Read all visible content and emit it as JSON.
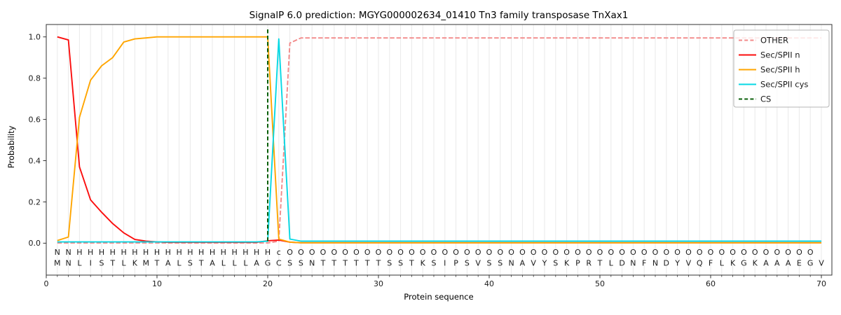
{
  "title": "SignalP 6.0 prediction: MGYG000002634_01410 Tn3 family transposase TnXax1",
  "chart_data": {
    "type": "line",
    "title": "SignalP 6.0 prediction: MGYG000002634_01410 Tn3 family transposase TnXax1",
    "xlabel": "Protein sequence",
    "ylabel": "Probability",
    "x_ticks": [
      0,
      10,
      20,
      30,
      40,
      50,
      60,
      70
    ],
    "y_ticks": [
      "0.0",
      "0.2",
      "0.4",
      "0.6",
      "0.8",
      "1.0"
    ],
    "ylim": [
      0.0,
      1.0
    ],
    "xlim": [
      0,
      71
    ],
    "grid": "vertical-per-residue",
    "legend_position": "upper right",
    "x": [
      1,
      2,
      3,
      4,
      5,
      6,
      7,
      8,
      9,
      10,
      11,
      12,
      13,
      14,
      15,
      16,
      17,
      18,
      19,
      20,
      21,
      22,
      23,
      24,
      25,
      26,
      27,
      28,
      29,
      30,
      31,
      32,
      33,
      34,
      35,
      36,
      37,
      38,
      39,
      40,
      41,
      42,
      43,
      44,
      45,
      46,
      47,
      48,
      49,
      50,
      51,
      52,
      53,
      54,
      55,
      56,
      57,
      58,
      59,
      60,
      61,
      62,
      63,
      64,
      65,
      66,
      67,
      68,
      69,
      70
    ],
    "series": [
      {
        "name": "OTHER",
        "color": "#f28a8a",
        "style": "dashed",
        "values": [
          0.001,
          0.001,
          0.001,
          0.001,
          0.001,
          0.001,
          0.001,
          0.001,
          0.001,
          0.001,
          0.001,
          0.001,
          0.001,
          0.001,
          0.001,
          0.001,
          0.001,
          0.001,
          0.001,
          0.001,
          0.01,
          0.97,
          0.995,
          0.995,
          0.995,
          0.995,
          0.995,
          0.995,
          0.995,
          0.995,
          0.995,
          0.995,
          0.995,
          0.995,
          0.995,
          0.995,
          0.995,
          0.995,
          0.995,
          0.995,
          0.995,
          0.995,
          0.995,
          0.995,
          0.995,
          0.995,
          0.995,
          0.995,
          0.995,
          0.995,
          0.995,
          0.995,
          0.995,
          0.995,
          0.995,
          0.995,
          0.995,
          0.995,
          0.995,
          0.995,
          0.995,
          0.995,
          0.995,
          0.995,
          0.995,
          0.995,
          0.995,
          0.995,
          0.995,
          0.995
        ]
      },
      {
        "name": "Sec/SPII n",
        "color": "#fb0e0e",
        "style": "solid",
        "values": [
          1.0,
          0.985,
          0.37,
          0.21,
          0.15,
          0.095,
          0.05,
          0.018,
          0.01,
          0.006,
          0.004,
          0.004,
          0.004,
          0.004,
          0.004,
          0.004,
          0.004,
          0.004,
          0.004,
          0.012,
          0.015,
          0.005,
          0.002,
          0.002,
          0.002,
          0.002,
          0.002,
          0.002,
          0.002,
          0.002,
          0.002,
          0.002,
          0.002,
          0.002,
          0.002,
          0.002,
          0.002,
          0.002,
          0.002,
          0.002,
          0.002,
          0.002,
          0.002,
          0.002,
          0.002,
          0.002,
          0.002,
          0.002,
          0.002,
          0.002,
          0.002,
          0.002,
          0.002,
          0.002,
          0.002,
          0.002,
          0.002,
          0.002,
          0.002,
          0.002,
          0.002,
          0.002,
          0.002,
          0.002,
          0.002,
          0.002,
          0.002,
          0.002,
          0.002,
          0.002
        ]
      },
      {
        "name": "Sec/SPII h",
        "color": "#ffa500",
        "style": "solid",
        "values": [
          0.013,
          0.03,
          0.61,
          0.79,
          0.86,
          0.9,
          0.975,
          0.99,
          0.995,
          1.0,
          1.0,
          1.0,
          1.0,
          1.0,
          1.0,
          1.0,
          1.0,
          1.0,
          1.0,
          1.0,
          0.02,
          0.005,
          0.002,
          0.002,
          0.002,
          0.002,
          0.002,
          0.002,
          0.002,
          0.002,
          0.002,
          0.002,
          0.002,
          0.002,
          0.002,
          0.002,
          0.002,
          0.002,
          0.002,
          0.002,
          0.002,
          0.002,
          0.002,
          0.002,
          0.002,
          0.002,
          0.002,
          0.002,
          0.002,
          0.002,
          0.002,
          0.002,
          0.002,
          0.002,
          0.002,
          0.002,
          0.002,
          0.002,
          0.002,
          0.002,
          0.002,
          0.002,
          0.002,
          0.002,
          0.002,
          0.002,
          0.002,
          0.002,
          0.002,
          0.002
        ]
      },
      {
        "name": "Sec/SPII cys",
        "color": "#06d8e4",
        "style": "solid",
        "values": [
          0.006,
          0.006,
          0.006,
          0.006,
          0.006,
          0.006,
          0.006,
          0.006,
          0.006,
          0.006,
          0.006,
          0.006,
          0.006,
          0.006,
          0.006,
          0.006,
          0.006,
          0.006,
          0.006,
          0.01,
          0.99,
          0.02,
          0.01,
          0.01,
          0.01,
          0.01,
          0.01,
          0.01,
          0.01,
          0.01,
          0.01,
          0.01,
          0.01,
          0.01,
          0.01,
          0.01,
          0.01,
          0.01,
          0.01,
          0.01,
          0.01,
          0.01,
          0.01,
          0.01,
          0.01,
          0.01,
          0.01,
          0.01,
          0.01,
          0.01,
          0.01,
          0.01,
          0.01,
          0.01,
          0.01,
          0.01,
          0.01,
          0.01,
          0.01,
          0.01,
          0.01,
          0.01,
          0.01,
          0.01,
          0.01,
          0.01,
          0.01,
          0.01,
          0.01,
          0.01
        ]
      }
    ],
    "cs_marker": {
      "label": "CS",
      "position": 20,
      "color": "#0a5f0a",
      "style": "dashed"
    },
    "annotation_row": {
      "text": "NNHHHHHHHHHHHHHHHHHHcOOOOOOOOOOOOOOOOOOOOOOOOOOOOOOOOOOOOOOOOOOOOOOOO",
      "colors": {
        "N": "#ee2b2b",
        "H": "#ffa500",
        "c": "#12c8da",
        "O": "#909090"
      }
    },
    "sequence_row": {
      "text": "MNLISTLKMTALSTALLLAGCSSNTTTTTTSSTKSIPSVSSNAVYSKPRTLDNFNDYVQFLKGKAAAEGV",
      "color": "#303030"
    }
  },
  "legend": {
    "items": [
      {
        "label": "OTHER",
        "color": "#f28a8a",
        "style": "dashed"
      },
      {
        "label": "Sec/SPII n",
        "color": "#fb0e0e",
        "style": "solid"
      },
      {
        "label": "Sec/SPII h",
        "color": "#ffa500",
        "style": "solid"
      },
      {
        "label": "Sec/SPII cys",
        "color": "#06d8e4",
        "style": "solid"
      },
      {
        "label": "CS",
        "color": "#0a5f0a",
        "style": "dashed"
      }
    ]
  }
}
